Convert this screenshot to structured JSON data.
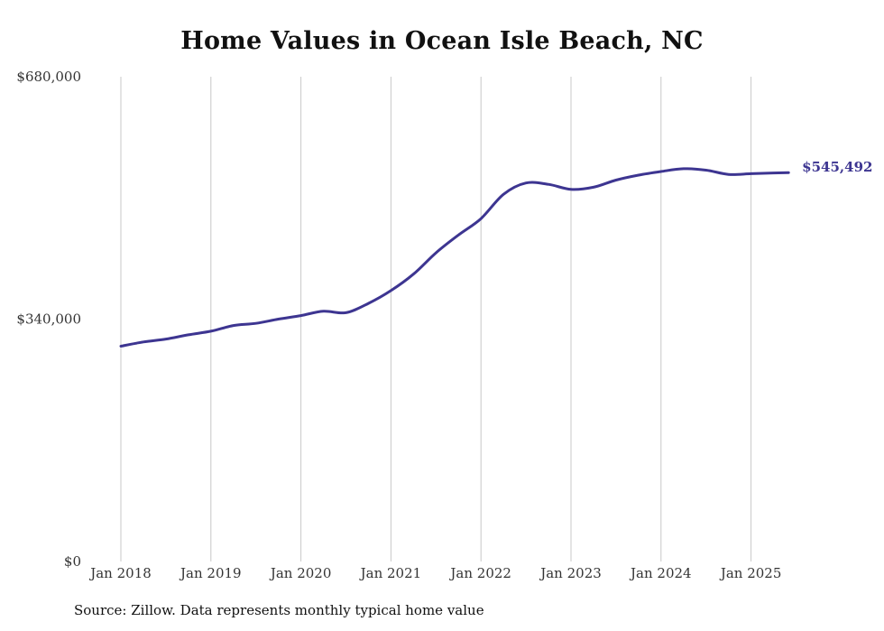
{
  "chart_data": {
    "type": "line",
    "title": "Home Values in Ocean Isle Beach, NC",
    "source": "Source: Zillow. Data represents monthly typical home value",
    "xlabel": "",
    "ylabel": "",
    "ylim": [
      0,
      680000
    ],
    "y_ticks": [
      {
        "value": 0,
        "label": "$0"
      },
      {
        "value": 340000,
        "label": "$340,000"
      },
      {
        "value": 680000,
        "label": "$680,000"
      }
    ],
    "x_ticks": [
      {
        "value": "2018-01",
        "label": "Jan 2018"
      },
      {
        "value": "2019-01",
        "label": "Jan 2019"
      },
      {
        "value": "2020-01",
        "label": "Jan 2020"
      },
      {
        "value": "2021-01",
        "label": "Jan 2021"
      },
      {
        "value": "2022-01",
        "label": "Jan 2022"
      },
      {
        "value": "2023-01",
        "label": "Jan 2023"
      },
      {
        "value": "2024-01",
        "label": "Jan 2024"
      },
      {
        "value": "2025-01",
        "label": "Jan 2025"
      }
    ],
    "grid": "vertical",
    "end_label": "$545,492",
    "series": [
      {
        "color": "#3d3591",
        "x": [
          "2018-01",
          "2018-04",
          "2018-07",
          "2018-10",
          "2019-01",
          "2019-04",
          "2019-07",
          "2019-10",
          "2020-01",
          "2020-04",
          "2020-07",
          "2020-10",
          "2021-01",
          "2021-04",
          "2021-07",
          "2021-10",
          "2022-01",
          "2022-04",
          "2022-07",
          "2022-10",
          "2023-01",
          "2023-04",
          "2023-07",
          "2023-10",
          "2024-01",
          "2024-04",
          "2024-07",
          "2024-10",
          "2025-01",
          "2025-04",
          "2025-06"
        ],
        "values": [
          302000,
          308000,
          312000,
          318000,
          323000,
          331000,
          334000,
          340000,
          345000,
          351000,
          349000,
          362000,
          380000,
          403000,
          433000,
          458000,
          481000,
          515000,
          531000,
          529000,
          522000,
          525000,
          535000,
          542000,
          547000,
          551000,
          549000,
          543000,
          544000,
          545000,
          545492
        ]
      }
    ]
  }
}
